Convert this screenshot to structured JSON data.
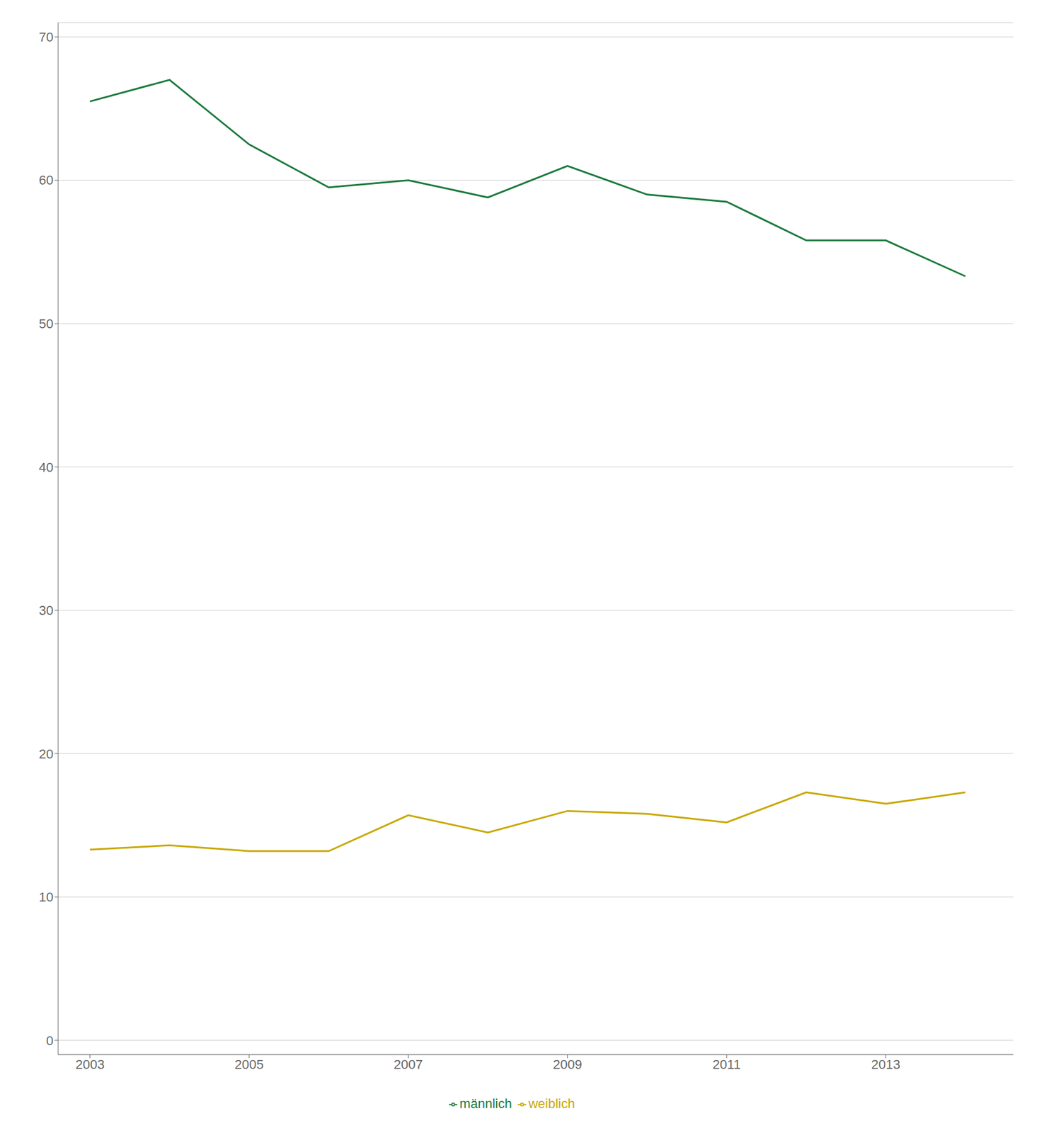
{
  "chart_data": {
    "type": "line",
    "x": [
      2003,
      2004,
      2005,
      2006,
      2007,
      2008,
      2009,
      2010,
      2011,
      2012,
      2013,
      2014
    ],
    "series": [
      {
        "name": "männlich",
        "color": "#1a7a3c",
        "values": [
          65.5,
          67.0,
          62.5,
          59.5,
          60.0,
          58.8,
          61.0,
          59.0,
          58.5,
          55.8,
          55.8,
          53.3
        ]
      },
      {
        "name": "weiblich",
        "color": "#c8a800",
        "values": [
          13.3,
          13.6,
          13.2,
          13.2,
          15.7,
          14.5,
          16.0,
          15.8,
          15.2,
          17.3,
          16.5,
          17.3
        ]
      }
    ],
    "xlim": [
      2002.6,
      2014.6
    ],
    "xticks": [
      2003,
      2005,
      2007,
      2009,
      2011,
      2013
    ],
    "ylim": [
      -1,
      71
    ],
    "yticks": [
      0,
      10,
      20,
      30,
      40,
      50,
      60,
      70
    ],
    "grid": "y",
    "legend": "bottom"
  }
}
